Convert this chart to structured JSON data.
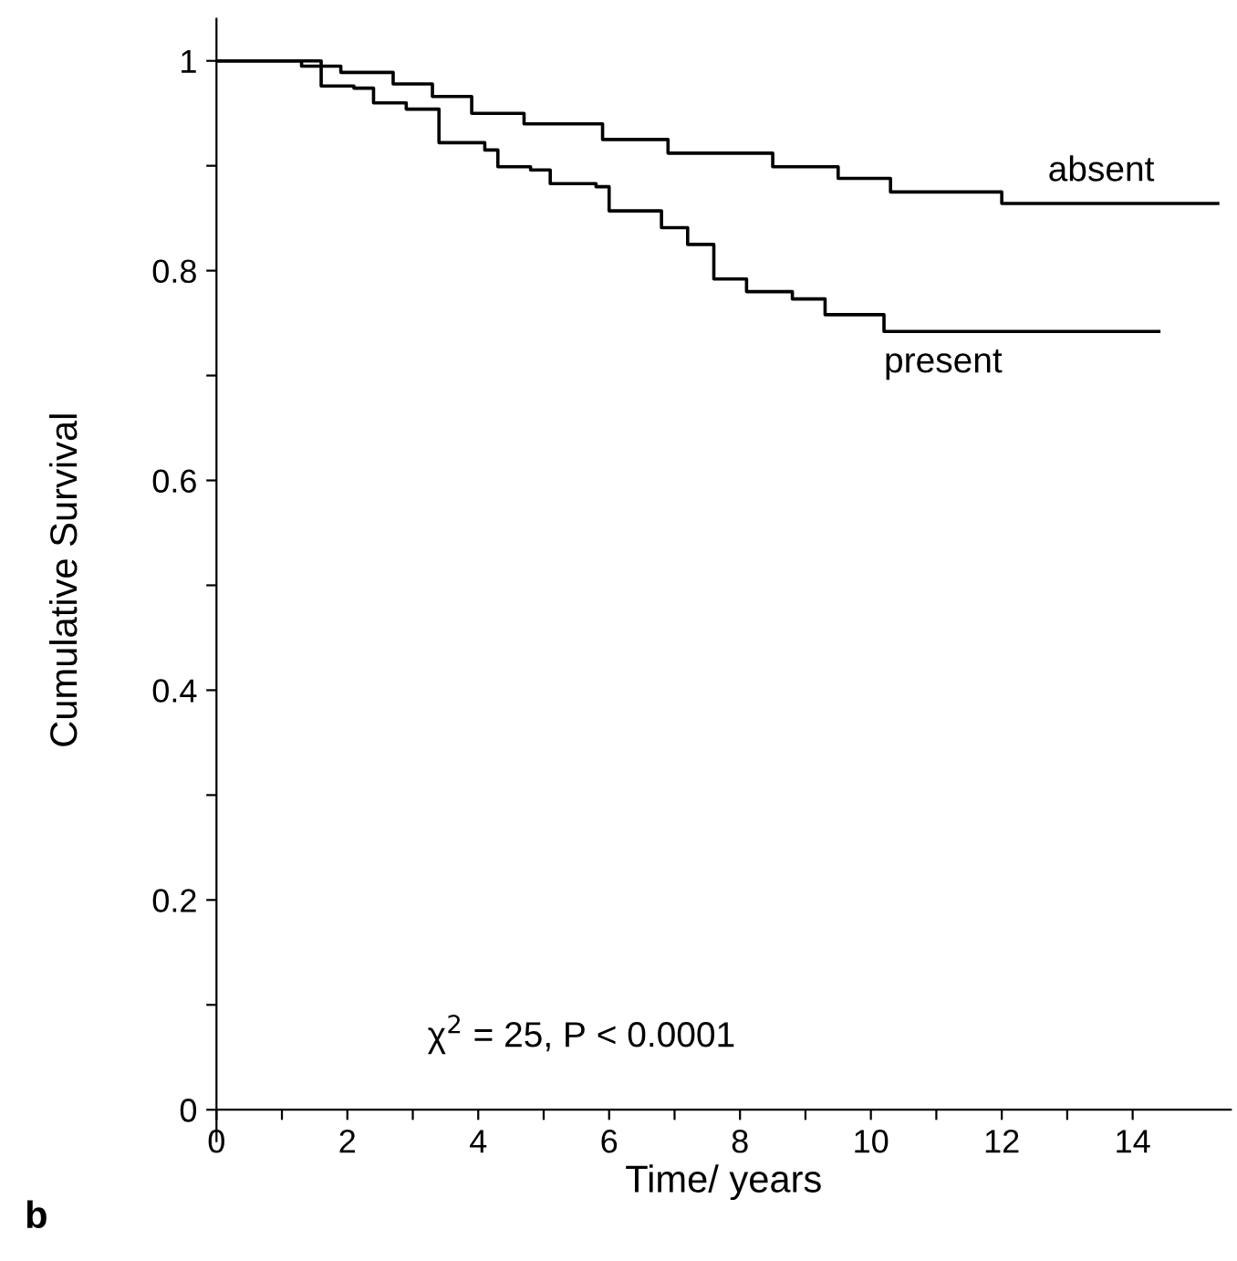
{
  "chart_data": {
    "type": "step",
    "xlabel": "Time/ years",
    "ylabel": "Cumulative Survival",
    "xlim": [
      0,
      15.5
    ],
    "ylim": [
      -0.03,
      1.04
    ],
    "xticks": [
      0,
      {
        "value": 1,
        "label": null
      },
      2,
      {
        "value": 3,
        "label": null
      },
      4,
      {
        "value": 5,
        "label": null
      },
      6,
      {
        "value": 7,
        "label": null
      },
      8,
      {
        "value": 9,
        "label": null
      },
      10,
      {
        "value": 11,
        "label": null
      },
      12,
      {
        "value": 13,
        "label": null
      },
      14
    ],
    "yticks": [
      0,
      {
        "value": 0.1,
        "label": null
      },
      0.2,
      {
        "value": 0.3,
        "label": null
      },
      0.4,
      {
        "value": 0.5,
        "label": null
      },
      0.6,
      {
        "value": 0.7,
        "label": null
      },
      0.8,
      {
        "value": 0.9,
        "label": null
      },
      1
    ],
    "grid": false,
    "legend": false,
    "marker": "none",
    "line_style": "solid",
    "series": [
      {
        "name": "absent",
        "color": "#000000",
        "x": [
          0,
          0.9,
          1.6,
          1.9,
          2.7,
          3.3,
          3.9,
          4.7,
          5.9,
          6.9,
          8.5,
          9.5,
          10.3,
          12.0,
          15.3
        ],
        "values": [
          1,
          1,
          0.995,
          0.989,
          0.978,
          0.966,
          0.95,
          0.94,
          0.925,
          0.912,
          0.899,
          0.888,
          0.875,
          0.864,
          0.864
        ]
      },
      {
        "name": "present",
        "color": "#000000",
        "x": [
          0,
          0.9,
          1.3,
          1.6,
          2.1,
          2.4,
          2.9,
          3.4,
          4.1,
          4.3,
          4.8,
          5.1,
          5.8,
          6.0,
          6.8,
          7.2,
          7.6,
          8.1,
          8.8,
          9.3,
          10.2,
          14.4
        ],
        "values": [
          1,
          1,
          0.995,
          0.976,
          0.974,
          0.96,
          0.954,
          0.922,
          0.915,
          0.899,
          0.896,
          0.883,
          0.88,
          0.857,
          0.841,
          0.825,
          0.792,
          0.78,
          0.773,
          0.758,
          0.742,
          0.742
        ]
      }
    ],
    "annotations": [
      "χ$^{2}$ = 25, P < 0.0001",
      "b"
    ]
  }
}
